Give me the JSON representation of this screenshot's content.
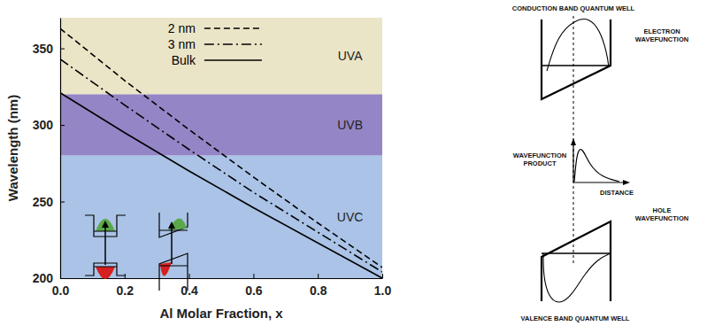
{
  "chart_data": {
    "type": "line",
    "x_label": "Al Molar Fraction, x",
    "y_label": "Wavelength (nm)",
    "x": [
      0,
      0.2,
      0.4,
      0.6,
      0.8,
      1.0
    ],
    "series": [
      {
        "name": "2 nm",
        "color": "#000000",
        "line_style": "dashed",
        "values": [
          363,
          329,
          297,
          266,
          236,
          207
        ]
      },
      {
        "name": "3 nm",
        "color": "#000000",
        "line_style": "dashdot",
        "values": [
          343,
          313,
          284,
          256,
          230,
          204
        ]
      },
      {
        "name": "Bulk",
        "color": "#000000",
        "line_style": "solid",
        "values": [
          321,
          295,
          270,
          246,
          223,
          200
        ]
      }
    ],
    "xlim": [
      0,
      1
    ],
    "ylim": [
      200,
      370
    ],
    "xticks": [
      {
        "value": 0,
        "label": "0.0"
      },
      {
        "value": 0.2,
        "label": "0.2"
      },
      {
        "value": 0.4,
        "label": "0.4"
      },
      {
        "value": 0.6,
        "label": "0.6"
      },
      {
        "value": 0.8,
        "label": "0.8"
      },
      {
        "value": 1,
        "label": "1.0"
      }
    ],
    "yticks": [
      200,
      250,
      300,
      350
    ],
    "grid": false,
    "legend": "top",
    "bands": [
      {
        "label": "UVA",
        "from": 320,
        "to": 370,
        "color": "#ebe5c8"
      },
      {
        "label": "UVB",
        "from": 280,
        "to": 320,
        "color": "#9485c6"
      },
      {
        "label": "UVC",
        "from": 200,
        "to": 280,
        "color": "#aac3e6"
      }
    ]
  },
  "diagram": {
    "conduction_title": "CONDUCTION BAND QUANTUM WELL",
    "electron_label": "ELECTRON WAVEFUNCTION",
    "product_label": "WAVEFUNCTION PRODUCT",
    "distance_label": "DISTANCE",
    "hole_label": "HOLE WAVEFUNCTION",
    "valence_title": "VALENCE BAND QUANTUM WELL"
  }
}
